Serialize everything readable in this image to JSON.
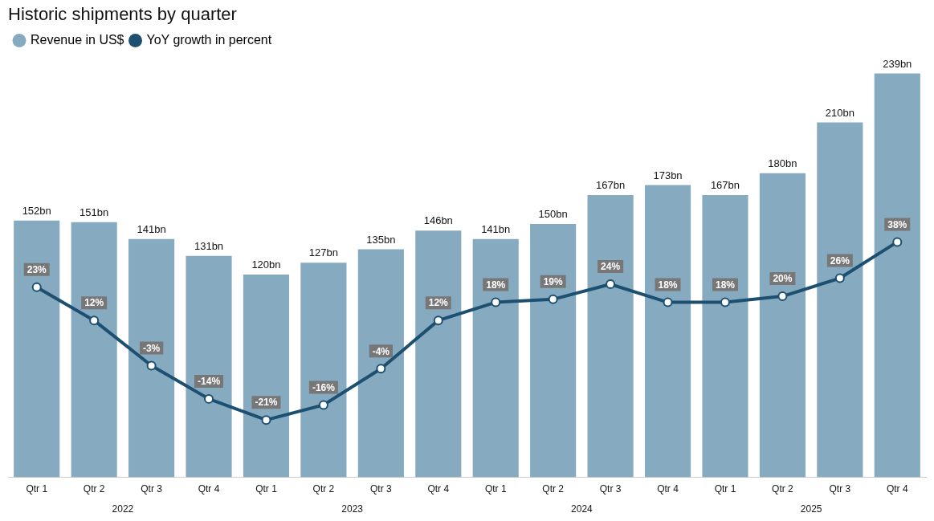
{
  "chart_data": {
    "type": "bar",
    "title": "Historic shipments by quarter",
    "categories": [
      "Qtr 1",
      "Qtr 2",
      "Qtr 3",
      "Qtr 4",
      "Qtr 1",
      "Qtr 2",
      "Qtr 3",
      "Qtr 4",
      "Qtr 1",
      "Qtr 2",
      "Qtr 3",
      "Qtr 4",
      "Qtr 1",
      "Qtr 2",
      "Qtr 3",
      "Qtr 4"
    ],
    "series": [
      {
        "name": "Revenue in US$",
        "color": "#86abc0",
        "values": [
          152,
          151,
          141,
          131,
          120,
          127,
          135,
          146,
          141,
          150,
          167,
          173,
          167,
          180,
          210,
          239
        ],
        "value_labels": [
          "152bn",
          "151bn",
          "141bn",
          "131bn",
          "120bn",
          "127bn",
          "135bn",
          "146bn",
          "141bn",
          "150bn",
          "167bn",
          "173bn",
          "167bn",
          "180bn",
          "210bn",
          "239bn"
        ]
      },
      {
        "name": "YoY growth in percent",
        "type": "line",
        "axis": "y2",
        "color": "#1d4f70",
        "marker": "circle",
        "values": [
          23,
          12,
          -3,
          -14,
          -21,
          -16,
          -4,
          12,
          18,
          19,
          24,
          18,
          18,
          20,
          26,
          38
        ],
        "value_labels": [
          "23%",
          "12%",
          "-3%",
          "-14%",
          "-21%",
          "-16%",
          "-4%",
          "12%",
          "18%",
          "19%",
          "24%",
          "18%",
          "18%",
          "20%",
          "26%",
          "38%"
        ]
      }
    ],
    "annotations": [
      "2022",
      "2023",
      "2024",
      "2025"
    ],
    "tick_labels": "x",
    "grid": false,
    "legend": "top left"
  }
}
